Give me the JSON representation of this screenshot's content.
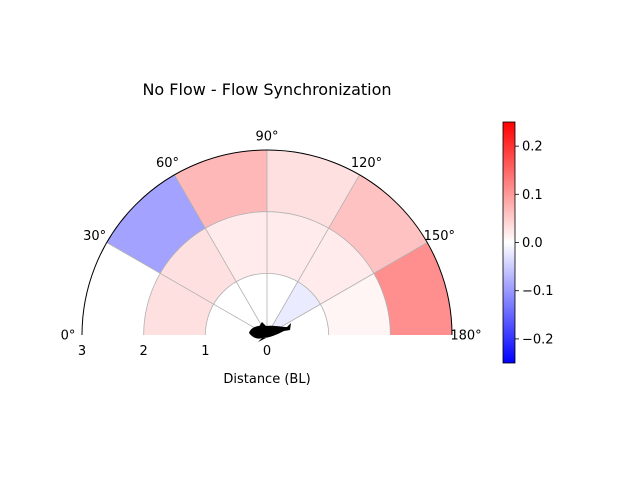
{
  "chart_data": {
    "type": "polar-heatmap",
    "title": "No Flow - Flow Synchronization",
    "xlabel": "Distance (BL)",
    "angle_ticks": [
      "0°",
      "30°",
      "60°",
      "90°",
      "120°",
      "150°",
      "180°"
    ],
    "angle_tick_values": [
      0,
      30,
      60,
      90,
      120,
      150,
      180
    ],
    "radial_ticks": [
      "3",
      "2",
      "1",
      "0"
    ],
    "radial_tick_values": [
      3,
      2,
      1,
      0
    ],
    "theta_range": [
      0,
      180
    ],
    "r_range": [
      0,
      3
    ],
    "grid": true,
    "colorbar": {
      "min": -0.25,
      "max": 0.25,
      "ticks": [
        "0.2",
        "0.1",
        "0.0",
        "−0.1",
        "−0.2"
      ],
      "tick_values": [
        0.2,
        0.1,
        0.0,
        -0.1,
        -0.2
      ],
      "colormap": "bwr"
    },
    "cells": [
      {
        "r": [
          1,
          2
        ],
        "theta": [
          90,
          120
        ],
        "value": 0.02
      },
      {
        "r": [
          1,
          2
        ],
        "theta": [
          120,
          150
        ],
        "value": 0.02
      },
      {
        "r": [
          1,
          2
        ],
        "theta": [
          150,
          180
        ],
        "value": 0.01
      },
      {
        "r": [
          1,
          2
        ],
        "theta": [
          60,
          90
        ],
        "value": 0.02
      },
      {
        "r": [
          1,
          2
        ],
        "theta": [
          30,
          60
        ],
        "value": 0.03
      },
      {
        "r": [
          1,
          2
        ],
        "theta": [
          0,
          30
        ],
        "value": 0.03
      },
      {
        "r": [
          2,
          3
        ],
        "theta": [
          90,
          120
        ],
        "value": 0.03
      },
      {
        "r": [
          2,
          3
        ],
        "theta": [
          120,
          150
        ],
        "value": 0.06
      },
      {
        "r": [
          2,
          3
        ],
        "theta": [
          150,
          180
        ],
        "value": 0.11
      },
      {
        "r": [
          2,
          3
        ],
        "theta": [
          60,
          90
        ],
        "value": 0.07
      },
      {
        "r": [
          2,
          3
        ],
        "theta": [
          30,
          60
        ],
        "value": -0.09
      },
      {
        "r": [
          0,
          1
        ],
        "theta": [
          90,
          120
        ],
        "value": 0.0
      },
      {
        "r": [
          0,
          1
        ],
        "theta": [
          120,
          150
        ],
        "value": -0.02
      }
    ]
  }
}
